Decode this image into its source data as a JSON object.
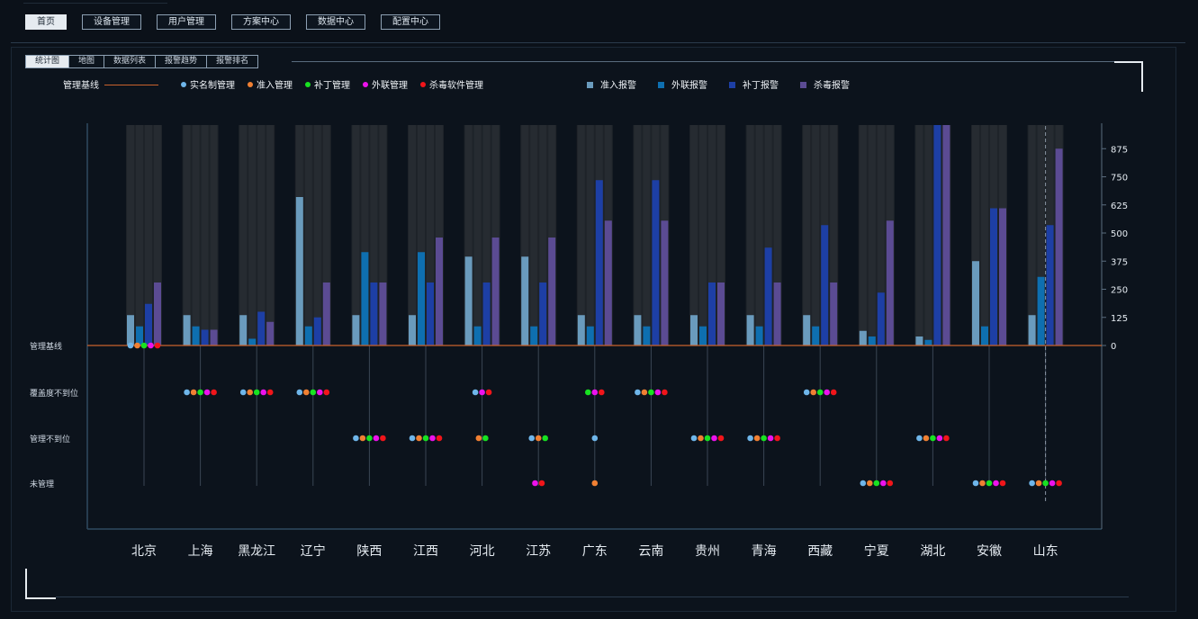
{
  "nav": {
    "items": [
      "首页",
      "设备管理",
      "用户管理",
      "方案中心",
      "数据中心",
      "配置中心"
    ],
    "active": 0
  },
  "tabs": {
    "items": [
      "统计图",
      "地图",
      "数据列表",
      "报警趋势",
      "报警排名"
    ],
    "active": 0
  },
  "legend": {
    "baseline": "管理基线",
    "dots": [
      {
        "label": "实名制管理",
        "color": "#6fb6ea"
      },
      {
        "label": "准入管理",
        "color": "#f08033"
      },
      {
        "label": "补丁管理",
        "color": "#18e221"
      },
      {
        "label": "外联管理",
        "color": "#ec12ec"
      },
      {
        "label": "杀毒软件管理",
        "color": "#f1151a"
      }
    ],
    "bars": [
      {
        "label": "准入报警",
        "color": "#6a9bbd"
      },
      {
        "label": "外联报警",
        "color": "#0e6fb0"
      },
      {
        "label": "补丁报警",
        "color": "#1d3fa5"
      },
      {
        "label": "杀毒报警",
        "color": "#5b4b93"
      }
    ]
  },
  "chart_data": {
    "type": "bar",
    "categories": [
      "北京",
      "上海",
      "黑龙江",
      "辽宁",
      "陕西",
      "江西",
      "河北",
      "江苏",
      "广东",
      "云南",
      "贵州",
      "青海",
      "西藏",
      "宁夏",
      "湖北",
      "安徽",
      "山东"
    ],
    "yticks": [
      0,
      125,
      250,
      375,
      500,
      625,
      750,
      875
    ],
    "ylim": [
      0,
      980
    ],
    "series": [
      {
        "name": "准入报警",
        "color": "#6a9bbd",
        "values": [
          135,
          135,
          135,
          660,
          135,
          135,
          395,
          395,
          135,
          135,
          135,
          135,
          135,
          65,
          40,
          375,
          135
        ]
      },
      {
        "name": "外联报警",
        "color": "#0e6fb0",
        "values": [
          85,
          85,
          30,
          85,
          415,
          415,
          85,
          85,
          85,
          85,
          85,
          85,
          85,
          40,
          25,
          85,
          305
        ]
      },
      {
        "name": "补丁报警",
        "color": "#1d3fa5",
        "values": [
          185,
          70,
          150,
          125,
          280,
          280,
          280,
          280,
          735,
          735,
          280,
          435,
          535,
          235,
          980,
          610,
          535
        ]
      },
      {
        "name": "杀毒报警",
        "color": "#5b4b93",
        "values": [
          280,
          70,
          105,
          280,
          280,
          480,
          480,
          480,
          555,
          555,
          280,
          280,
          280,
          555,
          980,
          610,
          875
        ]
      }
    ],
    "status_rows": [
      "管理基线",
      "覆盖度不到位",
      "管理不到位",
      "未管理"
    ],
    "status_dots": [
      [
        [
          0,
          1,
          2,
          3,
          4
        ],
        [],
        [],
        []
      ],
      [
        [],
        [
          0,
          1,
          2,
          3,
          4
        ],
        [],
        []
      ],
      [
        [],
        [
          0,
          1,
          2,
          3,
          4
        ],
        [],
        []
      ],
      [
        [],
        [
          0,
          1,
          2,
          3,
          4
        ],
        [],
        []
      ],
      [
        [],
        [],
        [
          0,
          1,
          2,
          3,
          4
        ],
        []
      ],
      [
        [],
        [],
        [
          0,
          1,
          2,
          3,
          4
        ],
        []
      ],
      [
        [],
        [
          0,
          3,
          4
        ],
        [
          1,
          2
        ],
        []
      ],
      [
        [],
        [],
        [
          0,
          1,
          2
        ],
        [
          3,
          4
        ]
      ],
      [
        [],
        [
          2,
          3,
          4
        ],
        [
          0
        ],
        [
          1
        ]
      ],
      [
        [],
        [
          0,
          1,
          2,
          3,
          4
        ],
        [],
        []
      ],
      [
        [],
        [],
        [
          0,
          1,
          2,
          3,
          4
        ],
        []
      ],
      [
        [],
        [],
        [
          0,
          1,
          2,
          3,
          4
        ],
        []
      ],
      [
        [],
        [
          0,
          1,
          2,
          3,
          4
        ],
        [],
        []
      ],
      [
        [],
        [],
        [],
        [
          0,
          1,
          2,
          3,
          4
        ]
      ],
      [
        [],
        [],
        [
          0,
          1,
          2,
          3,
          4
        ],
        []
      ],
      [
        [],
        [],
        [],
        [
          0,
          1,
          2,
          3,
          4
        ]
      ],
      [
        [],
        [],
        [],
        [
          0,
          1,
          2,
          3,
          4
        ]
      ]
    ]
  }
}
